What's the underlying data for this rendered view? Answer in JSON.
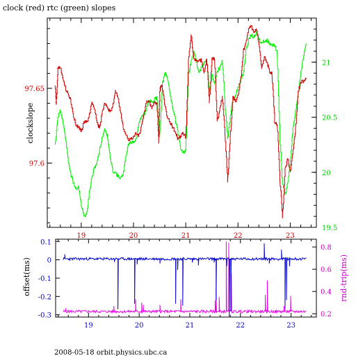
{
  "title": "clock (red) rtc (green) slopes",
  "footer": "2008-05-18 orbit.physics.ubc.ca",
  "colors": {
    "red": "#cc0000",
    "green": "#00ee00",
    "offset": "#0000cc",
    "rtt": "#ee00ee",
    "upper_left_axis": "#cc0000",
    "upper_right_axis": "#00cc00",
    "lower_left_axis": "#0000cc",
    "lower_right_axis": "#cc00cc"
  },
  "chart_data": [
    {
      "type": "line",
      "title": "clock (red) rtc (green) slopes",
      "xlabel": "",
      "ylabel": "clockslope",
      "y2label": "",
      "xlim": [
        18.35,
        23.5
      ],
      "ylim": [
        97.557,
        97.697
      ],
      "y2lim": [
        19.5,
        21.4
      ],
      "x_ticks": [
        19,
        20,
        21,
        22,
        23
      ],
      "y_ticks": [
        97.6,
        97.65
      ],
      "y2_ticks": [
        19.5,
        20,
        20.5,
        21
      ],
      "grid": false,
      "series": [
        {
          "name": "clock (red)",
          "axis": "left",
          "x": [
            18.5,
            18.52,
            18.55,
            18.6,
            18.65,
            18.7,
            18.75,
            18.8,
            18.85,
            18.9,
            18.95,
            19.0,
            19.05,
            19.1,
            19.15,
            19.2,
            19.25,
            19.3,
            19.35,
            19.4,
            19.45,
            19.5,
            19.55,
            19.6,
            19.65,
            19.7,
            19.75,
            19.8,
            19.85,
            19.9,
            19.95,
            20.0,
            20.05,
            20.1,
            20.15,
            20.2,
            20.25,
            20.3,
            20.35,
            20.4,
            20.45,
            20.48,
            20.5,
            20.52,
            20.55,
            20.6,
            20.65,
            20.7,
            20.75,
            20.8,
            20.85,
            20.9,
            20.95,
            21.0,
            21.05,
            21.1,
            21.15,
            21.2,
            21.25,
            21.3,
            21.35,
            21.4,
            21.45,
            21.5,
            21.55,
            21.6,
            21.65,
            21.7,
            21.75,
            21.8,
            21.85,
            21.9,
            21.95,
            22.0,
            22.05,
            22.1,
            22.15,
            22.2,
            22.25,
            22.3,
            22.35,
            22.4,
            22.45,
            22.5,
            22.55,
            22.6,
            22.65,
            22.7,
            22.75,
            22.8,
            22.85,
            22.9,
            22.95,
            23.0,
            23.05,
            23.1,
            23.15,
            23.2,
            23.25,
            23.3
          ],
          "y": [
            97.652,
            97.639,
            97.664,
            97.664,
            97.657,
            97.649,
            97.647,
            97.641,
            97.631,
            97.625,
            97.624,
            97.621,
            97.628,
            97.627,
            97.631,
            97.641,
            97.637,
            97.627,
            97.623,
            97.634,
            97.64,
            97.637,
            97.634,
            97.637,
            97.649,
            97.644,
            97.634,
            97.624,
            97.619,
            97.615,
            97.616,
            97.618,
            97.62,
            97.618,
            97.624,
            97.633,
            97.642,
            97.641,
            97.636,
            97.641,
            97.639,
            97.613,
            97.648,
            97.652,
            97.651,
            97.638,
            97.63,
            97.627,
            97.624,
            97.621,
            97.616,
            97.618,
            97.62,
            97.617,
            97.668,
            97.686,
            97.67,
            97.668,
            97.668,
            97.669,
            97.66,
            97.67,
            97.64,
            97.67,
            97.67,
            97.628,
            97.636,
            97.645,
            97.62,
            97.587,
            97.617,
            97.645,
            97.641,
            97.645,
            97.656,
            97.675,
            97.68,
            97.69,
            97.692,
            97.687,
            97.69,
            97.68,
            97.663,
            97.671,
            97.668,
            97.661,
            97.66,
            97.627,
            97.626,
            97.59,
            97.563,
            97.596,
            97.603,
            97.594,
            97.607,
            97.623,
            97.648,
            97.654,
            97.655,
            97.656
          ]
        },
        {
          "name": "rtc (green)",
          "axis": "right",
          "x": [
            18.5,
            18.55,
            18.6,
            18.65,
            18.7,
            18.75,
            18.8,
            18.85,
            18.9,
            18.95,
            19.0,
            19.05,
            19.1,
            19.15,
            19.2,
            19.25,
            19.3,
            19.35,
            19.4,
            19.45,
            19.5,
            19.55,
            19.6,
            19.65,
            19.7,
            19.75,
            19.8,
            19.85,
            19.9,
            19.95,
            20.0,
            20.05,
            20.1,
            20.15,
            20.2,
            20.25,
            20.3,
            20.35,
            20.4,
            20.45,
            20.5,
            20.55,
            20.6,
            20.65,
            20.7,
            20.75,
            20.8,
            20.85,
            20.9,
            20.95,
            21.0,
            21.05,
            21.1,
            21.15,
            21.2,
            21.25,
            21.3,
            21.35,
            21.4,
            21.45,
            21.5,
            21.55,
            21.6,
            21.65,
            21.7,
            21.75,
            21.8,
            21.85,
            21.9,
            21.95,
            22.0,
            22.05,
            22.1,
            22.15,
            22.2,
            22.25,
            22.3,
            22.35,
            22.4,
            22.45,
            22.5,
            22.55,
            22.6,
            22.65,
            22.7,
            22.75,
            22.8,
            22.85,
            22.9,
            22.95,
            23.0,
            23.05,
            23.1,
            23.15,
            23.2,
            23.25,
            23.3
          ],
          "y": [
            20.25,
            20.5,
            20.57,
            20.45,
            20.3,
            20.1,
            19.98,
            19.9,
            19.85,
            19.87,
            19.7,
            19.6,
            19.62,
            19.8,
            19.95,
            20.04,
            20.09,
            20.2,
            20.32,
            20.4,
            20.32,
            20.14,
            20.01,
            20.0,
            19.96,
            19.95,
            19.97,
            20.14,
            20.26,
            20.27,
            20.28,
            20.3,
            20.44,
            20.5,
            20.53,
            20.58,
            20.65,
            20.64,
            20.66,
            20.68,
            20.32,
            20.8,
            20.9,
            20.85,
            20.71,
            20.58,
            20.48,
            20.35,
            20.22,
            20.18,
            20.2,
            20.9,
            21.0,
            21.1,
            21.0,
            20.9,
            20.96,
            20.98,
            21.02,
            20.72,
            20.89,
            20.8,
            20.92,
            20.95,
            21.01,
            20.62,
            20.3,
            20.5,
            20.66,
            20.7,
            20.77,
            20.83,
            20.9,
            21.1,
            21.2,
            21.25,
            21.22,
            21.28,
            21.2,
            21.18,
            21.19,
            21.2,
            21.17,
            21.15,
            21.16,
            21.08,
            20.3,
            19.9,
            19.8,
            19.9,
            20.1,
            20.4,
            20.55,
            20.7,
            20.9,
            21.05,
            21.17
          ]
        }
      ]
    },
    {
      "type": "line",
      "title": "",
      "xlabel": "",
      "ylabel": "offset(ms)",
      "y2label": "rnd-trip(ms)",
      "xlim": [
        18.35,
        23.5
      ],
      "ylim": [
        -0.3125,
        0.1125
      ],
      "y2lim": [
        0.17,
        0.87
      ],
      "x_ticks": [
        19,
        20,
        21,
        22,
        23
      ],
      "y_ticks": [
        0.1,
        0,
        -0.1,
        -0.2,
        -0.3
      ],
      "y2_ticks": [
        0.2,
        0.4,
        0.6,
        0.8
      ],
      "grid": false,
      "series": [
        {
          "name": "offset",
          "axis": "left",
          "baseline": 0.005,
          "noise": 0.007,
          "events": [
            {
              "x": 18.53,
              "y": 0.03
            },
            {
              "x": 19.51,
              "y": -0.012
            },
            {
              "x": 19.58,
              "y": -0.27
            },
            {
              "x": 19.91,
              "y": -0.24
            },
            {
              "x": 19.96,
              "y": -0.025
            },
            {
              "x": 20.41,
              "y": -0.02
            },
            {
              "x": 20.72,
              "y": -0.24
            },
            {
              "x": 20.76,
              "y": -0.055
            },
            {
              "x": 20.86,
              "y": -0.25
            },
            {
              "x": 21.05,
              "y": -0.015
            },
            {
              "x": 21.17,
              "y": -0.03
            },
            {
              "x": 21.48,
              "y": -0.015
            },
            {
              "x": 21.52,
              "y": -0.22
            },
            {
              "x": 21.73,
              "y": -0.035
            },
            {
              "x": 21.78,
              "y": -0.31
            },
            {
              "x": 21.81,
              "y": -0.28
            },
            {
              "x": 22.47,
              "y": 0.09
            },
            {
              "x": 22.57,
              "y": -0.02
            },
            {
              "x": 22.81,
              "y": 0.055
            },
            {
              "x": 22.88,
              "y": -0.27
            },
            {
              "x": 22.91,
              "y": -0.22
            },
            {
              "x": 22.97,
              "y": -0.035
            }
          ]
        },
        {
          "name": "rnd-trip",
          "axis": "right",
          "baseline": 0.22,
          "noise": 0.012,
          "events": [
            {
              "x": 18.55,
              "y": 0.25
            },
            {
              "x": 19.5,
              "y": 0.27
            },
            {
              "x": 19.93,
              "y": 0.33
            },
            {
              "x": 20.05,
              "y": 0.3
            },
            {
              "x": 20.08,
              "y": 0.28
            },
            {
              "x": 20.41,
              "y": 0.28
            },
            {
              "x": 20.82,
              "y": 0.33
            },
            {
              "x": 21.5,
              "y": 0.32
            },
            {
              "x": 21.52,
              "y": 0.43
            },
            {
              "x": 21.58,
              "y": 0.35
            },
            {
              "x": 21.72,
              "y": 0.85
            },
            {
              "x": 21.77,
              "y": 0.84
            },
            {
              "x": 21.82,
              "y": 0.56
            },
            {
              "x": 22.49,
              "y": 0.37
            },
            {
              "x": 22.53,
              "y": 0.5
            },
            {
              "x": 22.86,
              "y": 0.27
            },
            {
              "x": 22.99,
              "y": 0.36
            }
          ]
        }
      ]
    }
  ]
}
